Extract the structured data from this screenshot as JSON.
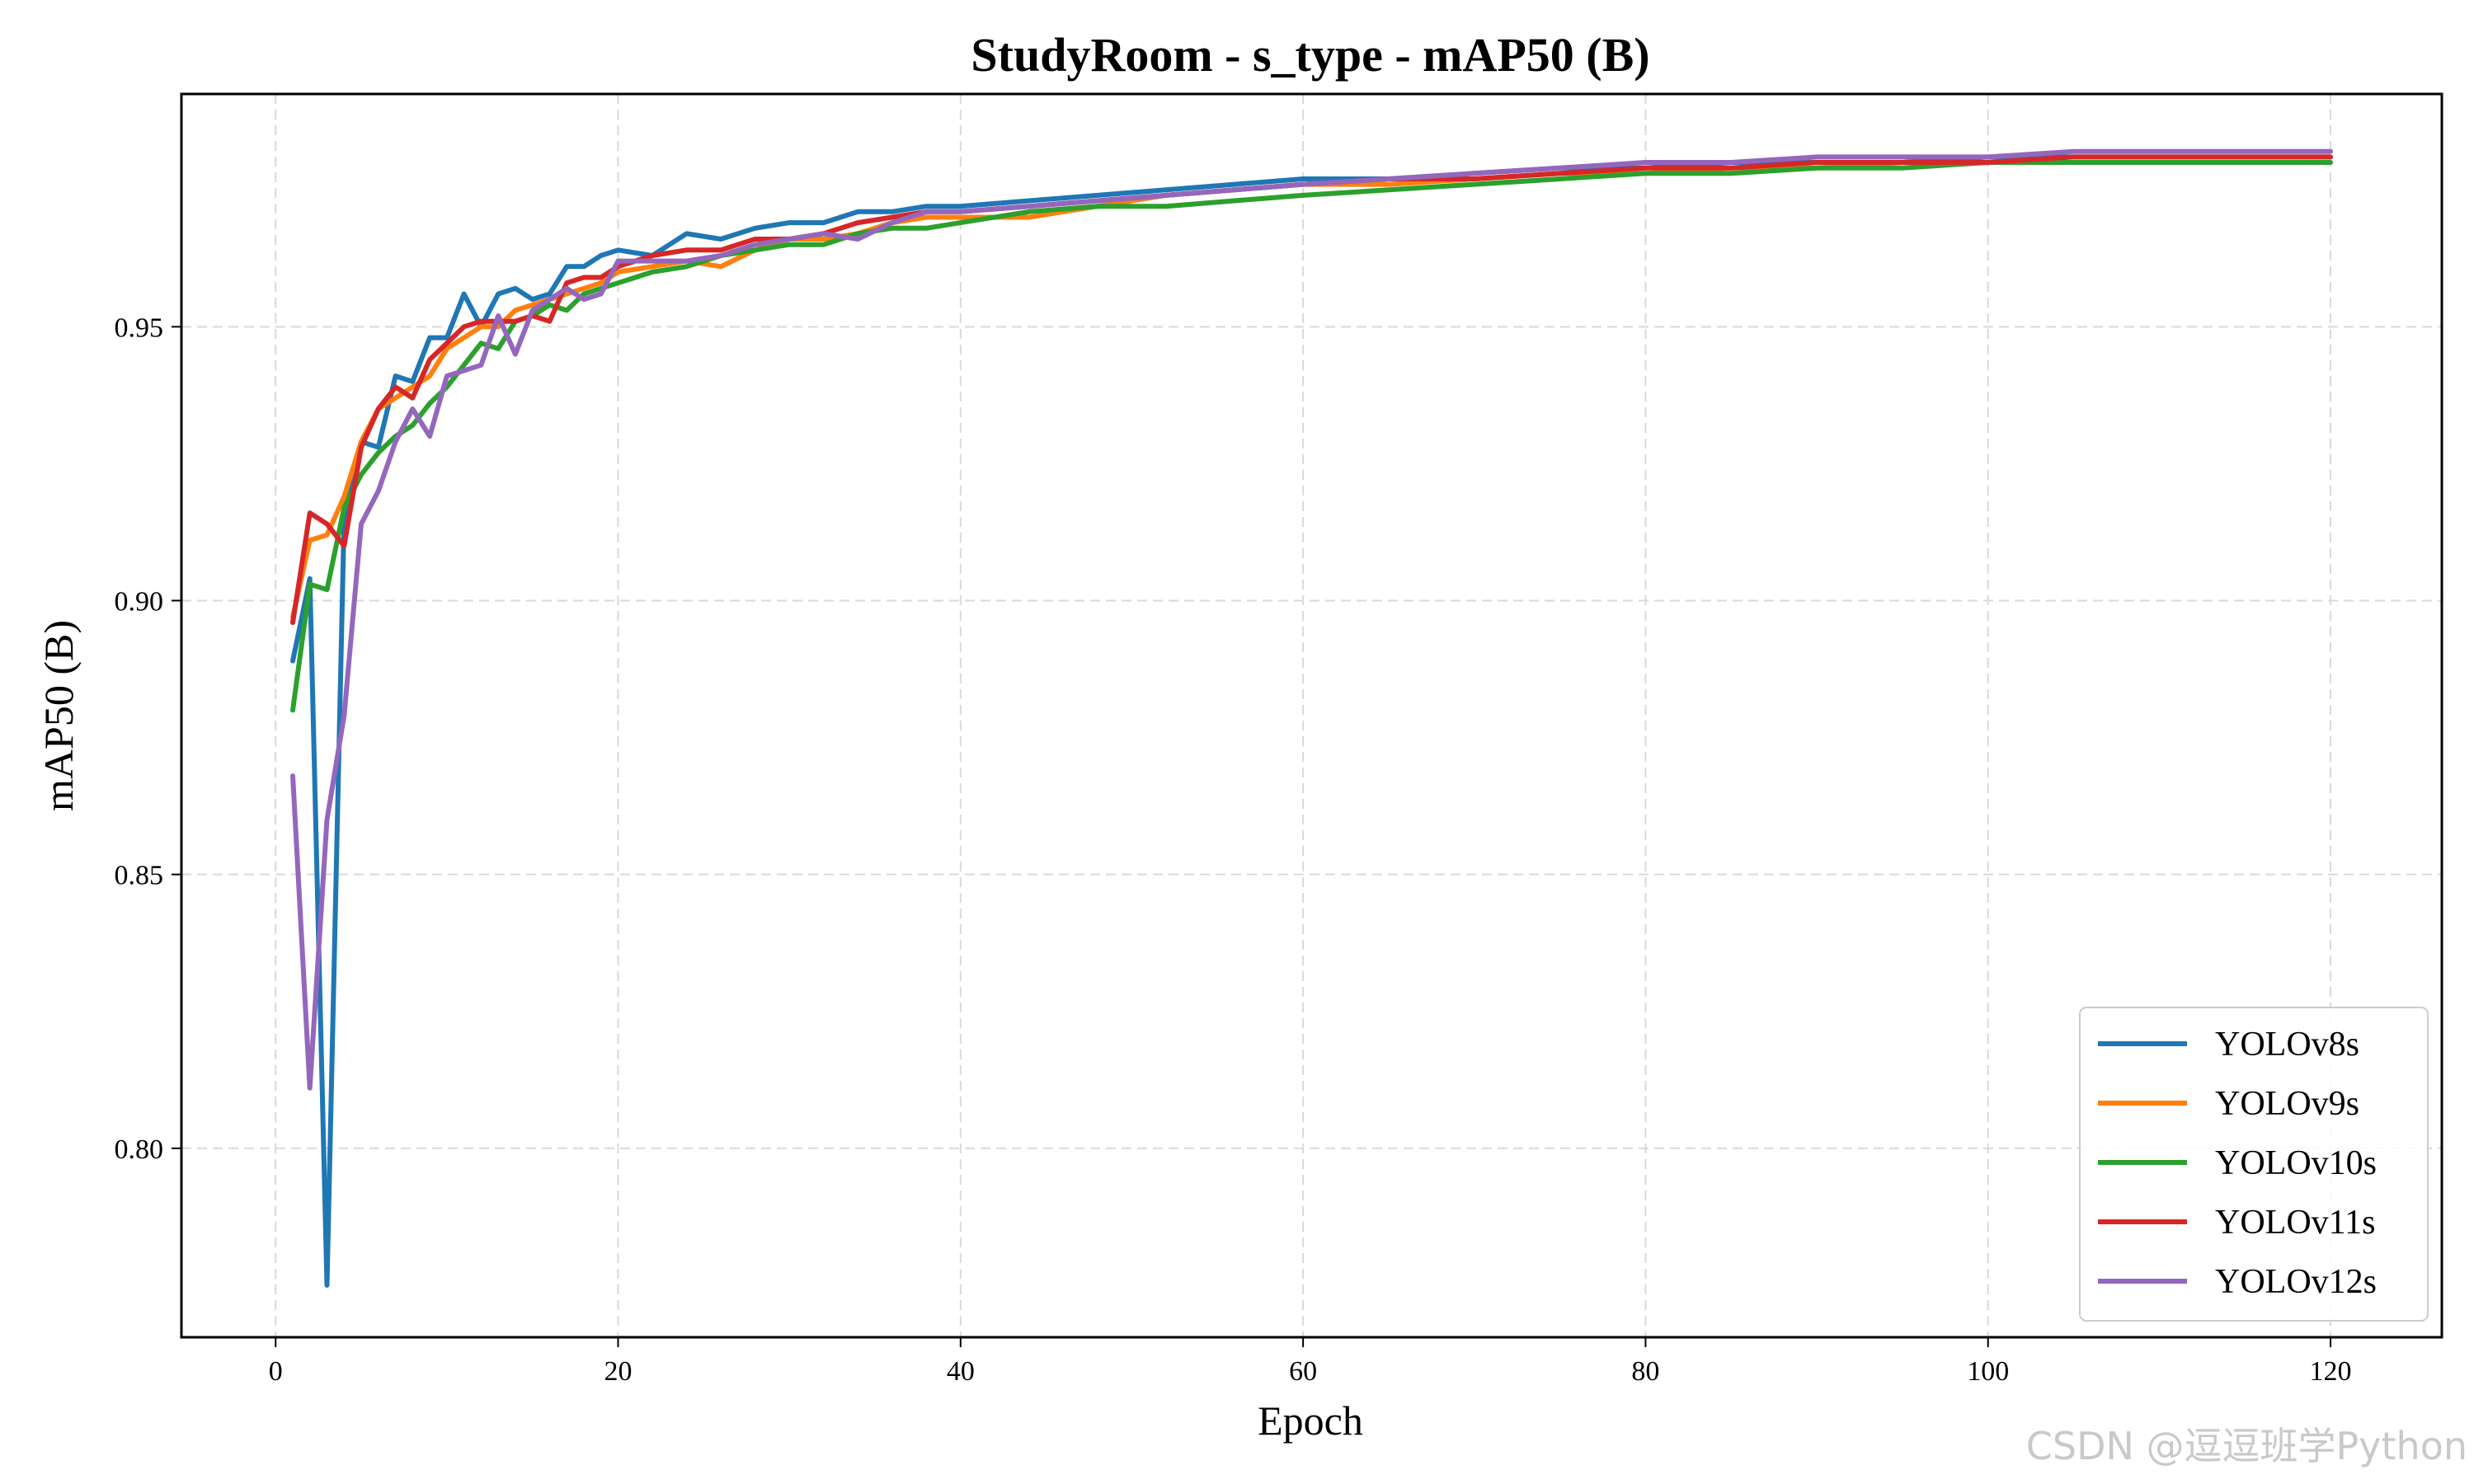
{
  "watermark": "CSDN @逗逗班学Python",
  "chart_data": {
    "type": "line",
    "title": "StudyRoom - s_type - mAP50 (B)",
    "xlabel": "Epoch",
    "ylabel": "mAP50 (B)",
    "xlim": [
      -5.5,
      126.5
    ],
    "ylim": [
      0.7655,
      0.9925
    ],
    "xticks": [
      0,
      20,
      40,
      60,
      80,
      100,
      120
    ],
    "xtick_labels": [
      "0",
      "20",
      "40",
      "60",
      "80",
      "100",
      "120"
    ],
    "yticks": [
      0.8,
      0.85,
      0.9,
      0.95
    ],
    "ytick_labels": [
      "0.80",
      "0.85",
      "0.90",
      "0.95"
    ],
    "grid": true,
    "legend_position": "lower right",
    "series": [
      {
        "name": "YOLOv8s",
        "color": "#1f77b4",
        "points": [
          [
            1,
            0.889
          ],
          [
            2,
            0.904
          ],
          [
            3,
            0.775
          ],
          [
            4,
            0.915
          ],
          [
            5,
            0.929
          ],
          [
            6,
            0.928
          ],
          [
            7,
            0.941
          ],
          [
            8,
            0.94
          ],
          [
            9,
            0.948
          ],
          [
            10,
            0.948
          ],
          [
            11,
            0.956
          ],
          [
            12,
            0.95
          ],
          [
            13,
            0.956
          ],
          [
            14,
            0.957
          ],
          [
            15,
            0.955
          ],
          [
            16,
            0.956
          ],
          [
            17,
            0.961
          ],
          [
            18,
            0.961
          ],
          [
            19,
            0.963
          ],
          [
            20,
            0.964
          ],
          [
            22,
            0.963
          ],
          [
            24,
            0.967
          ],
          [
            26,
            0.966
          ],
          [
            28,
            0.968
          ],
          [
            30,
            0.969
          ],
          [
            32,
            0.969
          ],
          [
            34,
            0.971
          ],
          [
            36,
            0.971
          ],
          [
            38,
            0.972
          ],
          [
            40,
            0.972
          ],
          [
            44,
            0.973
          ],
          [
            48,
            0.974
          ],
          [
            52,
            0.975
          ],
          [
            56,
            0.976
          ],
          [
            60,
            0.977
          ],
          [
            65,
            0.977
          ],
          [
            70,
            0.978
          ],
          [
            75,
            0.979
          ],
          [
            80,
            0.979
          ],
          [
            85,
            0.98
          ],
          [
            90,
            0.98
          ],
          [
            95,
            0.98
          ],
          [
            100,
            0.981
          ],
          [
            105,
            0.981
          ],
          [
            110,
            0.981
          ],
          [
            115,
            0.981
          ],
          [
            120,
            0.981
          ]
        ]
      },
      {
        "name": "YOLOv9s",
        "color": "#ff7f0e",
        "points": [
          [
            1,
            0.897
          ],
          [
            2,
            0.911
          ],
          [
            3,
            0.912
          ],
          [
            4,
            0.919
          ],
          [
            5,
            0.929
          ],
          [
            6,
            0.935
          ],
          [
            7,
            0.937
          ],
          [
            8,
            0.939
          ],
          [
            9,
            0.941
          ],
          [
            10,
            0.946
          ],
          [
            11,
            0.948
          ],
          [
            12,
            0.95
          ],
          [
            13,
            0.95
          ],
          [
            14,
            0.953
          ],
          [
            15,
            0.954
          ],
          [
            16,
            0.955
          ],
          [
            17,
            0.956
          ],
          [
            18,
            0.957
          ],
          [
            19,
            0.958
          ],
          [
            20,
            0.96
          ],
          [
            22,
            0.961
          ],
          [
            24,
            0.962
          ],
          [
            26,
            0.961
          ],
          [
            28,
            0.964
          ],
          [
            30,
            0.966
          ],
          [
            32,
            0.966
          ],
          [
            34,
            0.967
          ],
          [
            36,
            0.969
          ],
          [
            38,
            0.97
          ],
          [
            40,
            0.97
          ],
          [
            44,
            0.97
          ],
          [
            48,
            0.972
          ],
          [
            52,
            0.974
          ],
          [
            56,
            0.975
          ],
          [
            60,
            0.976
          ],
          [
            65,
            0.976
          ],
          [
            70,
            0.977
          ],
          [
            75,
            0.978
          ],
          [
            80,
            0.978
          ],
          [
            85,
            0.979
          ],
          [
            90,
            0.979
          ],
          [
            95,
            0.98
          ],
          [
            100,
            0.98
          ],
          [
            105,
            0.98
          ],
          [
            110,
            0.98
          ],
          [
            115,
            0.98
          ],
          [
            120,
            0.98
          ]
        ]
      },
      {
        "name": "YOLOv10s",
        "color": "#2ca02c",
        "points": [
          [
            1,
            0.88
          ],
          [
            2,
            0.903
          ],
          [
            3,
            0.902
          ],
          [
            4,
            0.917
          ],
          [
            5,
            0.923
          ],
          [
            6,
            0.927
          ],
          [
            7,
            0.93
          ],
          [
            8,
            0.932
          ],
          [
            9,
            0.936
          ],
          [
            10,
            0.939
          ],
          [
            11,
            0.943
          ],
          [
            12,
            0.947
          ],
          [
            13,
            0.946
          ],
          [
            14,
            0.951
          ],
          [
            15,
            0.952
          ],
          [
            16,
            0.954
          ],
          [
            17,
            0.953
          ],
          [
            18,
            0.956
          ],
          [
            19,
            0.957
          ],
          [
            20,
            0.958
          ],
          [
            22,
            0.96
          ],
          [
            24,
            0.961
          ],
          [
            26,
            0.963
          ],
          [
            28,
            0.964
          ],
          [
            30,
            0.965
          ],
          [
            32,
            0.965
          ],
          [
            34,
            0.967
          ],
          [
            36,
            0.968
          ],
          [
            38,
            0.968
          ],
          [
            40,
            0.969
          ],
          [
            44,
            0.971
          ],
          [
            48,
            0.972
          ],
          [
            52,
            0.972
          ],
          [
            56,
            0.973
          ],
          [
            60,
            0.974
          ],
          [
            65,
            0.975
          ],
          [
            70,
            0.976
          ],
          [
            75,
            0.977
          ],
          [
            80,
            0.978
          ],
          [
            85,
            0.978
          ],
          [
            90,
            0.979
          ],
          [
            95,
            0.979
          ],
          [
            100,
            0.98
          ],
          [
            105,
            0.98
          ],
          [
            110,
            0.98
          ],
          [
            115,
            0.98
          ],
          [
            120,
            0.98
          ]
        ]
      },
      {
        "name": "YOLOv11s",
        "color": "#d62728",
        "points": [
          [
            1,
            0.896
          ],
          [
            2,
            0.916
          ],
          [
            3,
            0.914
          ],
          [
            4,
            0.91
          ],
          [
            5,
            0.928
          ],
          [
            6,
            0.935
          ],
          [
            7,
            0.939
          ],
          [
            8,
            0.937
          ],
          [
            9,
            0.944
          ],
          [
            10,
            0.947
          ],
          [
            11,
            0.95
          ],
          [
            12,
            0.951
          ],
          [
            13,
            0.951
          ],
          [
            14,
            0.951
          ],
          [
            15,
            0.952
          ],
          [
            16,
            0.951
          ],
          [
            17,
            0.958
          ],
          [
            18,
            0.959
          ],
          [
            19,
            0.959
          ],
          [
            20,
            0.961
          ],
          [
            22,
            0.963
          ],
          [
            24,
            0.964
          ],
          [
            26,
            0.964
          ],
          [
            28,
            0.966
          ],
          [
            30,
            0.966
          ],
          [
            32,
            0.967
          ],
          [
            34,
            0.969
          ],
          [
            36,
            0.97
          ],
          [
            38,
            0.971
          ],
          [
            40,
            0.971
          ],
          [
            44,
            0.972
          ],
          [
            48,
            0.973
          ],
          [
            52,
            0.974
          ],
          [
            56,
            0.975
          ],
          [
            60,
            0.976
          ],
          [
            65,
            0.977
          ],
          [
            70,
            0.977
          ],
          [
            75,
            0.978
          ],
          [
            80,
            0.979
          ],
          [
            85,
            0.979
          ],
          [
            90,
            0.98
          ],
          [
            95,
            0.98
          ],
          [
            100,
            0.98
          ],
          [
            105,
            0.981
          ],
          [
            110,
            0.981
          ],
          [
            115,
            0.981
          ],
          [
            120,
            0.981
          ]
        ]
      },
      {
        "name": "YOLOv12s",
        "color": "#9467bd",
        "points": [
          [
            1,
            0.868
          ],
          [
            2,
            0.811
          ],
          [
            3,
            0.86
          ],
          [
            4,
            0.879
          ],
          [
            5,
            0.914
          ],
          [
            6,
            0.92
          ],
          [
            7,
            0.929
          ],
          [
            8,
            0.935
          ],
          [
            9,
            0.93
          ],
          [
            10,
            0.941
          ],
          [
            11,
            0.942
          ],
          [
            12,
            0.943
          ],
          [
            13,
            0.952
          ],
          [
            14,
            0.945
          ],
          [
            15,
            0.953
          ],
          [
            16,
            0.955
          ],
          [
            17,
            0.957
          ],
          [
            18,
            0.955
          ],
          [
            19,
            0.956
          ],
          [
            20,
            0.962
          ],
          [
            22,
            0.962
          ],
          [
            24,
            0.962
          ],
          [
            26,
            0.963
          ],
          [
            28,
            0.965
          ],
          [
            30,
            0.966
          ],
          [
            32,
            0.967
          ],
          [
            34,
            0.966
          ],
          [
            36,
            0.969
          ],
          [
            38,
            0.971
          ],
          [
            40,
            0.971
          ],
          [
            44,
            0.972
          ],
          [
            48,
            0.973
          ],
          [
            52,
            0.974
          ],
          [
            56,
            0.975
          ],
          [
            60,
            0.976
          ],
          [
            65,
            0.977
          ],
          [
            70,
            0.978
          ],
          [
            75,
            0.979
          ],
          [
            80,
            0.98
          ],
          [
            85,
            0.98
          ],
          [
            90,
            0.981
          ],
          [
            95,
            0.981
          ],
          [
            100,
            0.981
          ],
          [
            105,
            0.982
          ],
          [
            110,
            0.982
          ],
          [
            115,
            0.982
          ],
          [
            120,
            0.982
          ]
        ]
      }
    ]
  }
}
